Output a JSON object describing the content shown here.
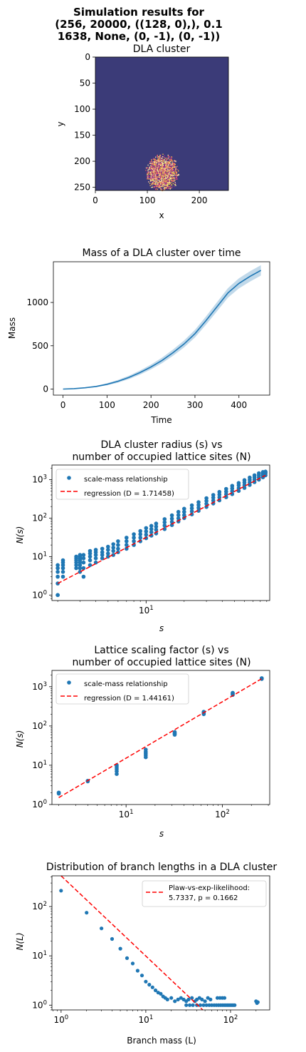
{
  "suptitle": [
    "Simulation results for",
    "(256, 20000, ((128, 0),), 0.1",
    "1638, None, (0, -1), (0, -1))"
  ],
  "chart_data": [
    {
      "id": "dla",
      "type": "heatmap",
      "title": "DLA cluster",
      "xlabel": "x",
      "ylabel": "y",
      "xlim": [
        0,
        256
      ],
      "ylim": [
        256,
        0
      ],
      "xticks": [
        "0",
        "100",
        "200"
      ],
      "yticks": [
        "0",
        "50",
        "100",
        "150",
        "200",
        "250"
      ],
      "background_color": "#3b3b78",
      "cluster_colors": [
        "#f5b94a",
        "#e4576a",
        "#9c2f8a",
        "#fbe9a0"
      ],
      "cluster_extent": {
        "x": [
          95,
          165
        ],
        "y": [
          180,
          256
        ]
      }
    },
    {
      "id": "mass",
      "type": "line",
      "title": "Mass of a DLA cluster over time",
      "xlabel": "Time",
      "ylabel": "Mass",
      "xlim": [
        -22,
        470
      ],
      "ylim": [
        -70,
        1470
      ],
      "xticks": [
        0,
        100,
        200,
        300,
        400
      ],
      "yticks": [
        0,
        500,
        1000
      ],
      "color": "#1f77b4",
      "x": [
        0,
        25,
        50,
        75,
        100,
        125,
        150,
        175,
        200,
        225,
        250,
        275,
        300,
        325,
        350,
        375,
        400,
        425,
        450
      ],
      "y": [
        0,
        5,
        15,
        30,
        55,
        90,
        135,
        190,
        255,
        330,
        420,
        520,
        640,
        790,
        950,
        1110,
        1220,
        1300,
        1370
      ],
      "band": [
        0,
        2,
        5,
        8,
        12,
        16,
        20,
        24,
        28,
        32,
        36,
        40,
        44,
        48,
        52,
        55,
        58,
        60,
        60
      ]
    },
    {
      "id": "radius",
      "type": "scatter",
      "title": [
        "DLA cluster radius (s) vs",
        "number of occupied lattice sites (N)"
      ],
      "xlabel": "s",
      "ylabel": "N(s)",
      "xscale": "log",
      "yscale": "log",
      "xlim": [
        1.8,
        95
      ],
      "ylim": [
        0.72,
        2400
      ],
      "xticks": [
        "10^1"
      ],
      "yticks": [
        "10^0",
        "10^1",
        "10^2",
        "10^3"
      ],
      "legend": [
        "scale-mass relationship",
        "regression ($D = 1.71458$)"
      ],
      "legend_labels": [
        "scale-mass relationship",
        "regression (D = 1.71458)"
      ],
      "legend_loc": "upper-left",
      "scatter_color": "#1f77b4",
      "regression_color": "#ff0000",
      "regression_D": 1.71458,
      "regression_line": {
        "x": [
          2,
          88
        ],
        "y": [
          2.0,
          1300
        ]
      },
      "points": [
        [
          2,
          1
        ],
        [
          2,
          1
        ],
        [
          2,
          2
        ],
        [
          2,
          3
        ],
        [
          2,
          4
        ],
        [
          2,
          5
        ],
        [
          2,
          6
        ],
        [
          2.2,
          3
        ],
        [
          2.2,
          4
        ],
        [
          2.2,
          5
        ],
        [
          2.2,
          6
        ],
        [
          2.2,
          7
        ],
        [
          2.2,
          8
        ],
        [
          2.8,
          5
        ],
        [
          2.8,
          6
        ],
        [
          2.8,
          7
        ],
        [
          2.8,
          8
        ],
        [
          2.8,
          9
        ],
        [
          2.8,
          10
        ],
        [
          3,
          4
        ],
        [
          3,
          5
        ],
        [
          3,
          6
        ],
        [
          3,
          7
        ],
        [
          3,
          8
        ],
        [
          3,
          9
        ],
        [
          3,
          10
        ],
        [
          3,
          11
        ],
        [
          3.2,
          3
        ],
        [
          3.2,
          5
        ],
        [
          3.2,
          7
        ],
        [
          3.2,
          9
        ],
        [
          3.2,
          11
        ],
        [
          3.6,
          6
        ],
        [
          3.6,
          8
        ],
        [
          3.6,
          10
        ],
        [
          3.6,
          12
        ],
        [
          3.6,
          14
        ],
        [
          4,
          7
        ],
        [
          4,
          9
        ],
        [
          4,
          11
        ],
        [
          4,
          13
        ],
        [
          4,
          15
        ],
        [
          4.5,
          9
        ],
        [
          4.5,
          11
        ],
        [
          4.5,
          13
        ],
        [
          4.5,
          16
        ],
        [
          5,
          10
        ],
        [
          5,
          12
        ],
        [
          5,
          15
        ],
        [
          5,
          18
        ],
        [
          5.5,
          11
        ],
        [
          5.5,
          14
        ],
        [
          5.5,
          17
        ],
        [
          5.5,
          21
        ],
        [
          6,
          13
        ],
        [
          6,
          16
        ],
        [
          6,
          20
        ],
        [
          6,
          25
        ],
        [
          7,
          16
        ],
        [
          7,
          20
        ],
        [
          7,
          25
        ],
        [
          7,
          31
        ],
        [
          8,
          20
        ],
        [
          8,
          25
        ],
        [
          8,
          31
        ],
        [
          8,
          38
        ],
        [
          9,
          25
        ],
        [
          9,
          31
        ],
        [
          9,
          38
        ],
        [
          9,
          46
        ],
        [
          10,
          30
        ],
        [
          10,
          37
        ],
        [
          10,
          45
        ],
        [
          10,
          55
        ],
        [
          11,
          35
        ],
        [
          11,
          43
        ],
        [
          11,
          52
        ],
        [
          11,
          63
        ],
        [
          12,
          40
        ],
        [
          12,
          50
        ],
        [
          12,
          60
        ],
        [
          12,
          72
        ],
        [
          14,
          52
        ],
        [
          14,
          64
        ],
        [
          14,
          78
        ],
        [
          14,
          94
        ],
        [
          16,
          66
        ],
        [
          16,
          80
        ],
        [
          16,
          97
        ],
        [
          16,
          118
        ],
        [
          18,
          82
        ],
        [
          18,
          99
        ],
        [
          18,
          120
        ],
        [
          18,
          145
        ],
        [
          20,
          100
        ],
        [
          20,
          120
        ],
        [
          20,
          145
        ],
        [
          20,
          175
        ],
        [
          23,
          125
        ],
        [
          23,
          150
        ],
        [
          23,
          180
        ],
        [
          23,
          215
        ],
        [
          26,
          155
        ],
        [
          26,
          185
        ],
        [
          26,
          220
        ],
        [
          26,
          260
        ],
        [
          30,
          195
        ],
        [
          30,
          235
        ],
        [
          30,
          280
        ],
        [
          30,
          330
        ],
        [
          34,
          240
        ],
        [
          34,
          285
        ],
        [
          34,
          340
        ],
        [
          34,
          400
        ],
        [
          38,
          290
        ],
        [
          38,
          345
        ],
        [
          38,
          410
        ],
        [
          38,
          480
        ],
        [
          43,
          350
        ],
        [
          43,
          415
        ],
        [
          43,
          490
        ],
        [
          43,
          575
        ],
        [
          48,
          420
        ],
        [
          48,
          500
        ],
        [
          48,
          590
        ],
        [
          48,
          690
        ],
        [
          54,
          510
        ],
        [
          54,
          600
        ],
        [
          54,
          710
        ],
        [
          54,
          820
        ],
        [
          60,
          610
        ],
        [
          60,
          720
        ],
        [
          60,
          840
        ],
        [
          60,
          970
        ],
        [
          66,
          730
        ],
        [
          66,
          850
        ],
        [
          66,
          990
        ],
        [
          66,
          1130
        ],
        [
          72,
          860
        ],
        [
          72,
          1000
        ],
        [
          72,
          1150
        ],
        [
          72,
          1300
        ],
        [
          78,
          1000
        ],
        [
          78,
          1150
        ],
        [
          78,
          1310
        ],
        [
          78,
          1470
        ],
        [
          84,
          1150
        ],
        [
          84,
          1300
        ],
        [
          84,
          1460
        ],
        [
          84,
          1580
        ],
        [
          88,
          1300
        ],
        [
          88,
          1450
        ],
        [
          88,
          1550
        ],
        [
          88,
          1620
        ]
      ]
    },
    {
      "id": "lattice",
      "type": "scatter",
      "title": [
        "Lattice scaling factor (s) vs",
        "number of occupied lattice sites (N)"
      ],
      "xlabel": "s",
      "ylabel": "N(s)",
      "xscale": "log",
      "yscale": "log",
      "xlim": [
        1.7,
        310
      ],
      "ylim": [
        1,
        2600
      ],
      "xticks": [
        "10^1",
        "10^2"
      ],
      "yticks": [
        "10^0",
        "10^1",
        "10^2",
        "10^3"
      ],
      "legend": [
        "scale-mass relationship",
        "regression ($D = 1.44161$)"
      ],
      "legend_labels": [
        "scale-mass relationship",
        "regression (D = 1.44161)"
      ],
      "legend_loc": "upper-left",
      "scatter_color": "#1f77b4",
      "regression_color": "#ff0000",
      "regression_D": 1.44161,
      "regression_line": {
        "x": [
          2,
          256
        ],
        "y": [
          1.5,
          1600
        ]
      },
      "points": [
        [
          2,
          2
        ],
        [
          2,
          2
        ],
        [
          2,
          1.9
        ],
        [
          4,
          4
        ],
        [
          4,
          4
        ],
        [
          4,
          3.9
        ],
        [
          8,
          6
        ],
        [
          8,
          7
        ],
        [
          8,
          8
        ],
        [
          8,
          9
        ],
        [
          8,
          10
        ],
        [
          16,
          16
        ],
        [
          16,
          18
        ],
        [
          16,
          20
        ],
        [
          16,
          22
        ],
        [
          16,
          25
        ],
        [
          32,
          60
        ],
        [
          32,
          63
        ],
        [
          32,
          66
        ],
        [
          32,
          70
        ],
        [
          64,
          200
        ],
        [
          64,
          210
        ],
        [
          64,
          220
        ],
        [
          64,
          230
        ],
        [
          128,
          620
        ],
        [
          128,
          650
        ],
        [
          128,
          680
        ],
        [
          128,
          700
        ],
        [
          256,
          1580
        ],
        [
          256,
          1600
        ],
        [
          256,
          1630
        ],
        [
          256,
          1650
        ]
      ]
    },
    {
      "id": "branch",
      "type": "scatter",
      "title": "Distribution of branch lengths in a DLA cluster",
      "xlabel": "Branch mass (L)",
      "ylabel": "N(L)",
      "xscale": "log",
      "yscale": "log",
      "xlim": [
        0.78,
        290
      ],
      "ylim": [
        0.8,
        420
      ],
      "xticks": [
        "10^0",
        "10^1",
        "10^2"
      ],
      "yticks": [
        "10^0",
        "10^1",
        "10^2"
      ],
      "legend": [
        "Plaw-vs-exp-likelihood:\n5.7337, p = 0.1662"
      ],
      "legend_lines": [
        "Plaw-vs-exp-likelihood:",
        "5.7337, p = 0.1662"
      ],
      "legend_loc": "upper-right",
      "scatter_color": "#1f77b4",
      "fit_color": "#ff0000",
      "fit_line": {
        "x": [
          1,
          47
        ],
        "y": [
          420,
          0.8
        ]
      },
      "points": [
        [
          1,
          210
        ],
        [
          2,
          75
        ],
        [
          3,
          36
        ],
        [
          4,
          22
        ],
        [
          5,
          14
        ],
        [
          6,
          9
        ],
        [
          7,
          7
        ],
        [
          8,
          5
        ],
        [
          9,
          4
        ],
        [
          10,
          3
        ],
        [
          11,
          2.6
        ],
        [
          12,
          2.3
        ],
        [
          13,
          2
        ],
        [
          14,
          1.8
        ],
        [
          15,
          1.7
        ],
        [
          16,
          1.5
        ],
        [
          17,
          1.4
        ],
        [
          18,
          1.3
        ],
        [
          20,
          1.4
        ],
        [
          22,
          1.2
        ],
        [
          24,
          1.3
        ],
        [
          26,
          1.4
        ],
        [
          28,
          1.3
        ],
        [
          30,
          1.2
        ],
        [
          32,
          1.3
        ],
        [
          35,
          1.4
        ],
        [
          38,
          1.2
        ],
        [
          40,
          1.3
        ],
        [
          43,
          1.4
        ],
        [
          46,
          1.3
        ],
        [
          50,
          1.2
        ],
        [
          54,
          1.4
        ],
        [
          58,
          1.3
        ],
        [
          30,
          1
        ],
        [
          33,
          1
        ],
        [
          36,
          1
        ],
        [
          40,
          1
        ],
        [
          44,
          1
        ],
        [
          48,
          1
        ],
        [
          52,
          1
        ],
        [
          56,
          1
        ],
        [
          60,
          1
        ],
        [
          64,
          1
        ],
        [
          68,
          1
        ],
        [
          72,
          1
        ],
        [
          76,
          1
        ],
        [
          80,
          1
        ],
        [
          84,
          1
        ],
        [
          88,
          1
        ],
        [
          92,
          1
        ],
        [
          96,
          1
        ],
        [
          100,
          1
        ],
        [
          104,
          1
        ],
        [
          108,
          1
        ],
        [
          112,
          1
        ],
        [
          70,
          1.4
        ],
        [
          75,
          1.4
        ],
        [
          80,
          1.4
        ],
        [
          85,
          1.4
        ],
        [
          200,
          1.2
        ],
        [
          205,
          1.1
        ],
        [
          210,
          1.15
        ]
      ]
    }
  ]
}
